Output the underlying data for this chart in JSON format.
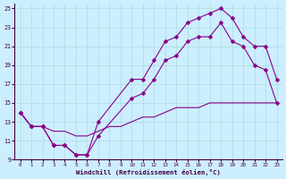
{
  "xlabel": "Windchill (Refroidissement éolien,°C)",
  "background_color": "#cceeff",
  "grid_color": "#aadddd",
  "line_color": "#880088",
  "xlim": [
    -0.5,
    23.5
  ],
  "ylim": [
    9,
    25.5
  ],
  "xticks": [
    0,
    1,
    2,
    3,
    4,
    5,
    6,
    7,
    8,
    9,
    10,
    11,
    12,
    13,
    14,
    15,
    16,
    17,
    18,
    19,
    20,
    21,
    22,
    23
  ],
  "yticks": [
    9,
    11,
    13,
    15,
    17,
    19,
    21,
    23,
    25
  ],
  "line1_x": [
    0,
    1,
    2,
    3,
    4,
    5,
    6,
    7,
    10,
    11,
    12,
    13,
    14,
    15,
    16,
    17,
    18,
    19,
    20,
    21,
    22,
    23
  ],
  "line1_y": [
    14,
    12.5,
    12.5,
    10.5,
    10.5,
    9.5,
    9.5,
    11.5,
    15.5,
    16,
    17.5,
    19.5,
    20,
    21.5,
    22,
    22,
    23.5,
    21.5,
    21,
    19,
    18.5,
    15
  ],
  "line2_x": [
    0,
    1,
    2,
    3,
    4,
    5,
    6,
    7,
    10,
    11,
    12,
    13,
    14,
    15,
    16,
    17,
    18,
    19,
    20,
    21,
    22,
    23
  ],
  "line2_y": [
    14,
    12.5,
    12.5,
    10.5,
    10.5,
    9.5,
    9.5,
    13,
    17.5,
    17.5,
    19.5,
    21.5,
    22,
    23.5,
    24,
    24.5,
    25,
    24,
    22,
    21,
    21,
    17.5
  ],
  "line3_x": [
    0,
    1,
    2,
    3,
    4,
    5,
    6,
    7,
    8,
    9,
    10,
    11,
    12,
    13,
    14,
    15,
    16,
    17,
    18,
    19,
    20,
    21,
    22,
    23
  ],
  "line3_y": [
    14,
    12.5,
    12.5,
    12,
    12,
    11.5,
    11.5,
    12,
    12.5,
    12.5,
    13,
    13.5,
    13.5,
    14,
    14.5,
    14.5,
    14.5,
    15,
    15,
    15,
    15,
    15,
    15,
    15
  ],
  "markersize": 2.5,
  "linewidth": 0.8
}
